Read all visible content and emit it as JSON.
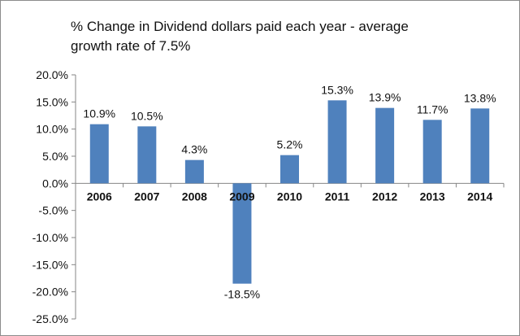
{
  "chart_data": {
    "type": "bar",
    "title": "% Change in Dividend dollars paid each year - average growth  rate of 7.5%",
    "categories": [
      "2006",
      "2007",
      "2008",
      "2009",
      "2010",
      "2011",
      "2012",
      "2013",
      "2014"
    ],
    "values": [
      10.9,
      10.5,
      4.3,
      -18.5,
      5.2,
      15.3,
      13.9,
      11.7,
      13.8
    ],
    "data_labels": [
      "10.9%",
      "10.5%",
      "4.3%",
      "-18.5%",
      "5.2%",
      "15.3%",
      "13.9%",
      "11.7%",
      "13.8%"
    ],
    "y_ticks": [
      20,
      15,
      10,
      5,
      0,
      -5,
      -10,
      -15,
      -20,
      -25
    ],
    "y_tick_labels": [
      "20.0%",
      "15.0%",
      "10.0%",
      "5.0%",
      "0.0%",
      "-5.0%",
      "-10.0%",
      "-15.0%",
      "-20.0%",
      "-25.0%"
    ],
    "ylim": [
      -25,
      20
    ],
    "xlabel": "",
    "ylabel": "",
    "grid": false,
    "legend": "none",
    "bar_color": "#4f81bd",
    "axis_color": "#868686"
  }
}
